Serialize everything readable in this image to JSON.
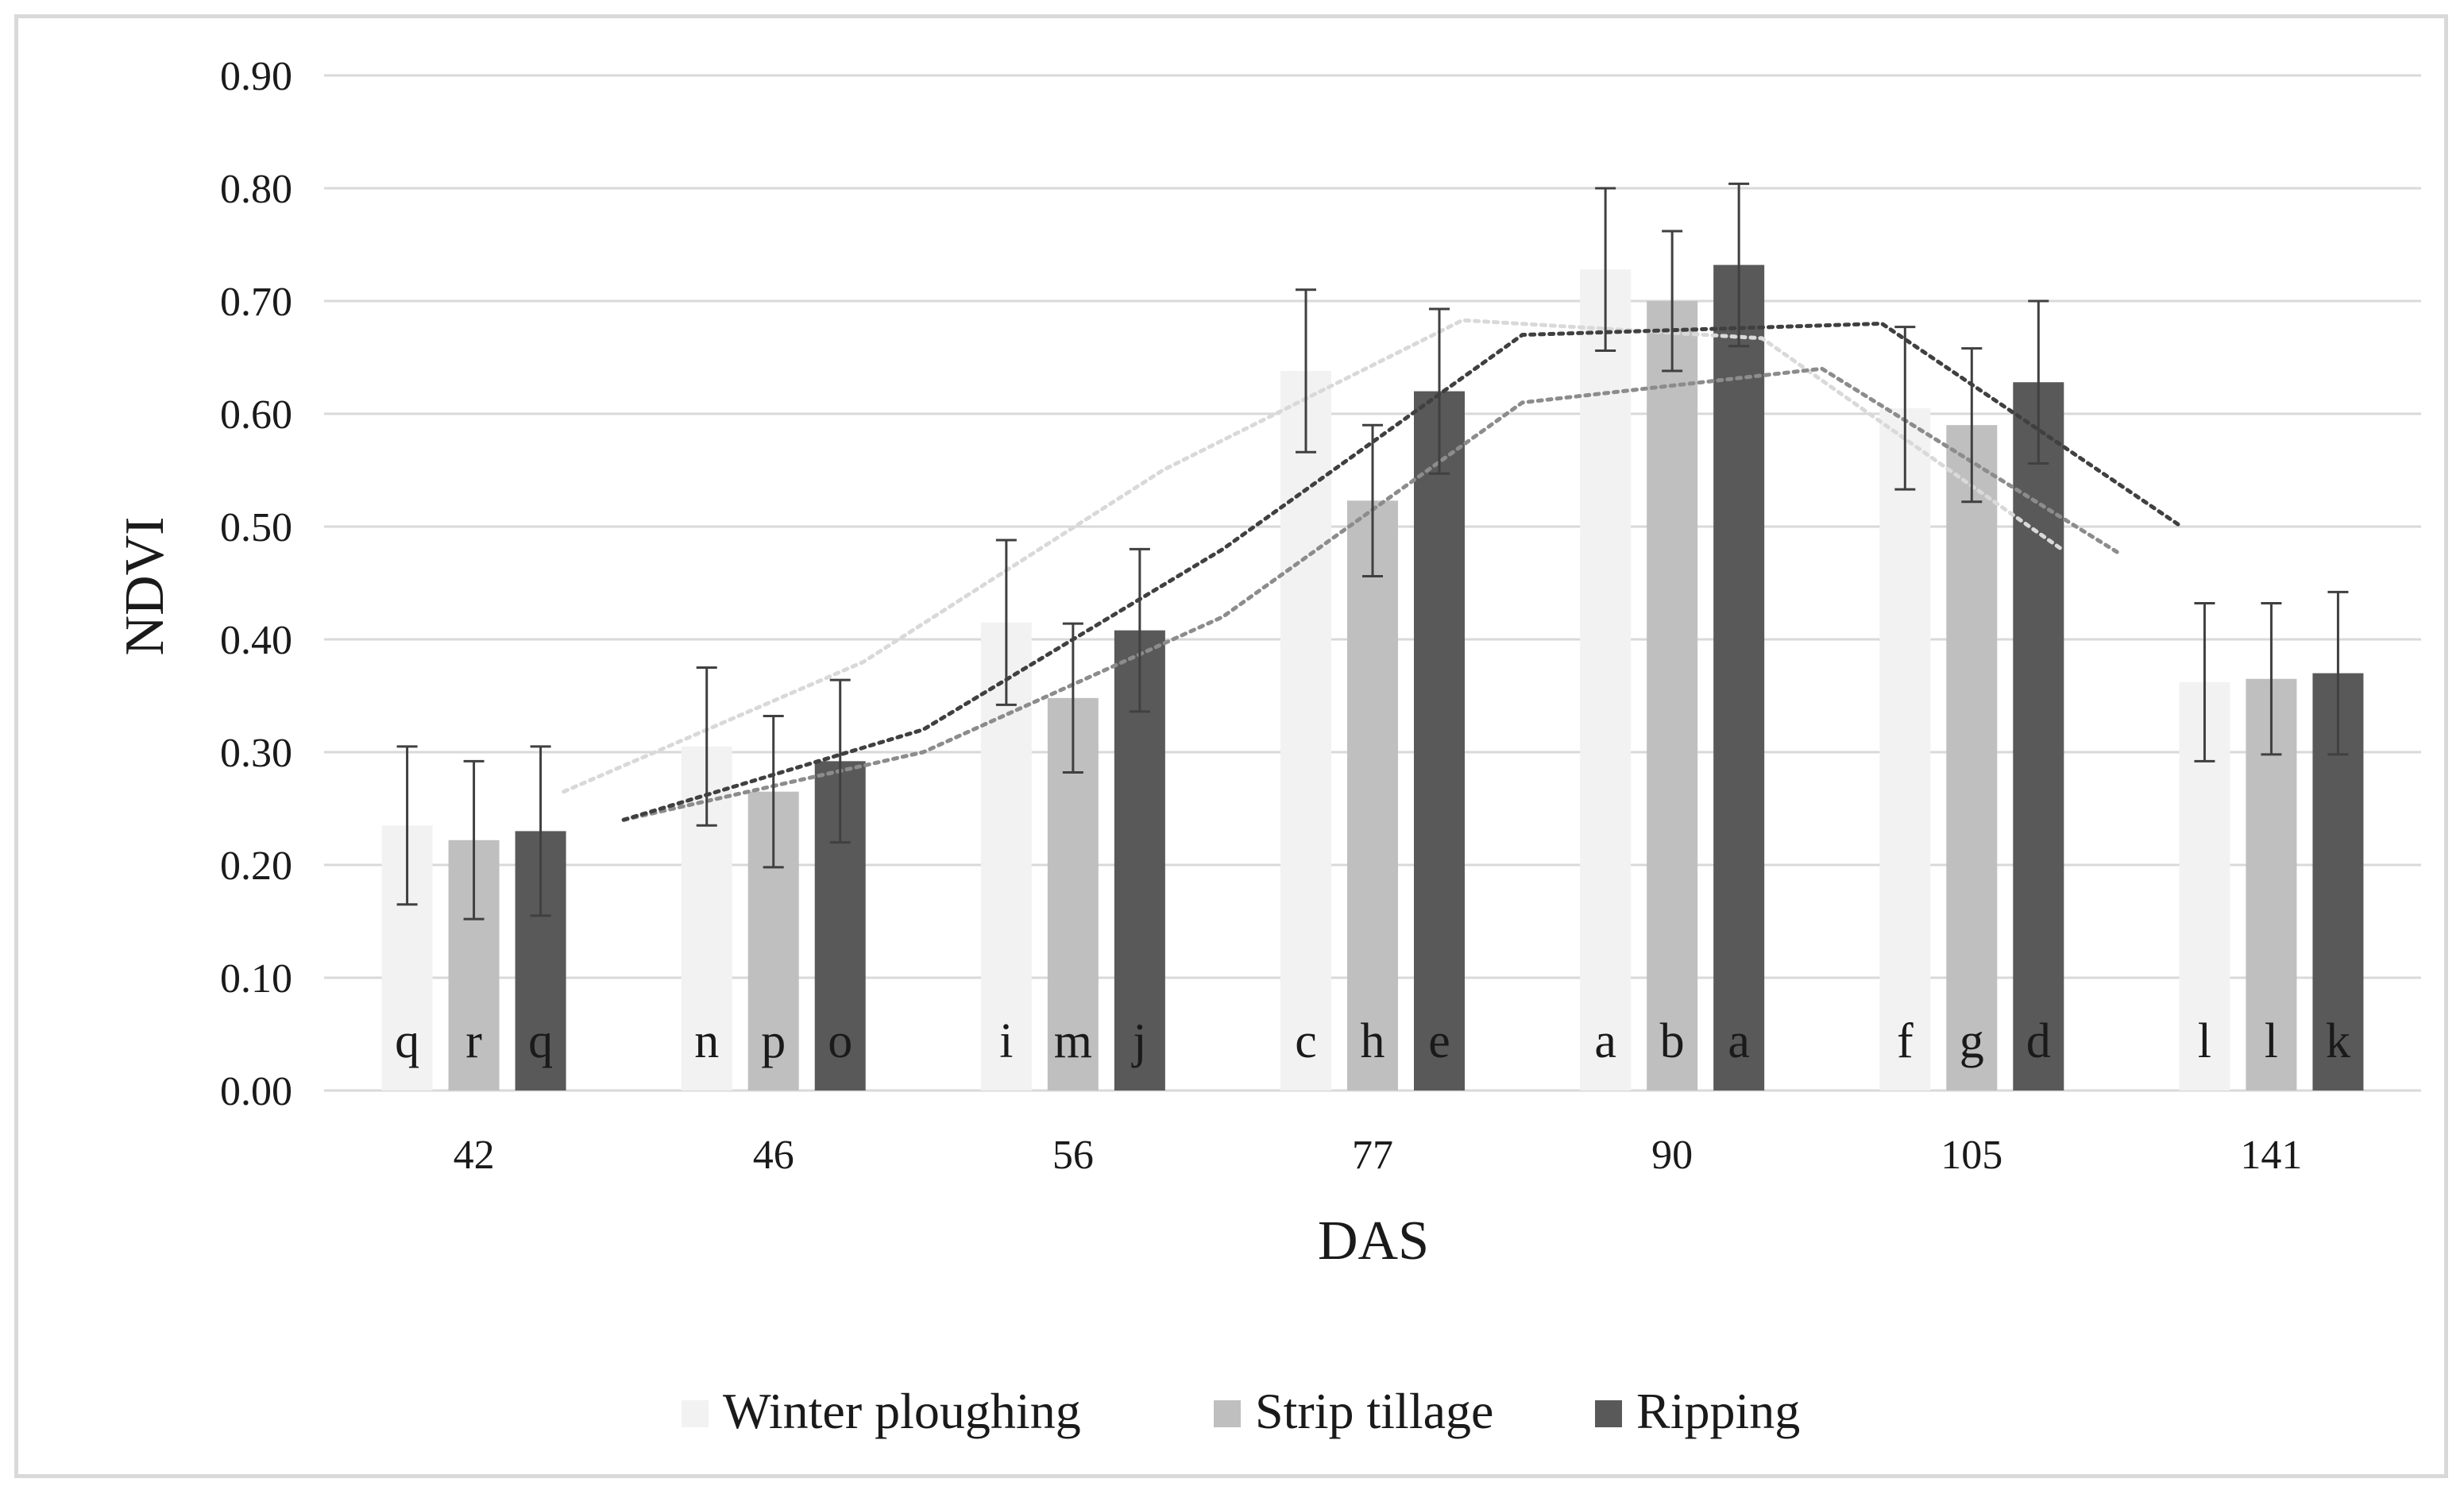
{
  "chart_data": {
    "type": "bar",
    "title": "",
    "xlabel": "DAS",
    "ylabel": "NDVI",
    "ylim": [
      0,
      0.9
    ],
    "yticks": [
      "0.00",
      "0.10",
      "0.20",
      "0.30",
      "0.40",
      "0.50",
      "0.60",
      "0.70",
      "0.80",
      "0.90"
    ],
    "grid": true,
    "legend_position": "bottom",
    "categories": [
      "42",
      "46",
      "56",
      "77",
      "90",
      "105",
      "141"
    ],
    "series": [
      {
        "name": "Winter ploughing",
        "color": "#f2f2f2",
        "values": [
          0.235,
          0.305,
          0.415,
          0.638,
          0.728,
          0.605,
          0.362
        ],
        "errors": [
          0.07,
          0.07,
          0.073,
          0.072,
          0.072,
          0.072,
          0.07
        ],
        "letters": [
          "q",
          "n",
          "i",
          "c",
          "a",
          "f",
          "l"
        ],
        "trend_color": "#d9d9d9",
        "trend": [
          {
            "x": 1.3,
            "y": 0.265
          },
          {
            "x": 2.3,
            "y": 0.38
          },
          {
            "x": 3.3,
            "y": 0.55
          },
          {
            "x": 4.3,
            "y": 0.683
          },
          {
            "x": 5.3,
            "y": 0.667
          },
          {
            "x": 6.3,
            "y": 0.48
          }
        ]
      },
      {
        "name": "Strip tillage",
        "color": "#bfbfbf",
        "values": [
          0.222,
          0.265,
          0.348,
          0.523,
          0.7,
          0.59,
          0.365
        ],
        "errors": [
          0.07,
          0.067,
          0.066,
          0.067,
          0.062,
          0.068,
          0.067
        ],
        "letters": [
          "r",
          "p",
          "m",
          "h",
          "b",
          "g",
          "l"
        ],
        "trend_color": "#8c8c8c",
        "trend": [
          {
            "x": 1.5,
            "y": 0.24
          },
          {
            "x": 2.5,
            "y": 0.3
          },
          {
            "x": 3.5,
            "y": 0.42
          },
          {
            "x": 4.5,
            "y": 0.61
          },
          {
            "x": 5.5,
            "y": 0.64
          },
          {
            "x": 6.5,
            "y": 0.475
          }
        ]
      },
      {
        "name": "Ripping",
        "color": "#595959",
        "values": [
          0.23,
          0.292,
          0.408,
          0.62,
          0.732,
          0.628,
          0.37
        ],
        "errors": [
          0.075,
          0.072,
          0.072,
          0.073,
          0.072,
          0.072,
          0.072
        ],
        "letters": [
          "q",
          "o",
          "j",
          "e",
          "a",
          "d",
          "k"
        ],
        "trend_color": "#404040",
        "trend": [
          {
            "x": 1.5,
            "y": 0.24
          },
          {
            "x": 2.5,
            "y": 0.32
          },
          {
            "x": 3.5,
            "y": 0.48
          },
          {
            "x": 4.5,
            "y": 0.67
          },
          {
            "x": 5.7,
            "y": 0.68
          },
          {
            "x": 6.7,
            "y": 0.5
          }
        ]
      }
    ]
  }
}
